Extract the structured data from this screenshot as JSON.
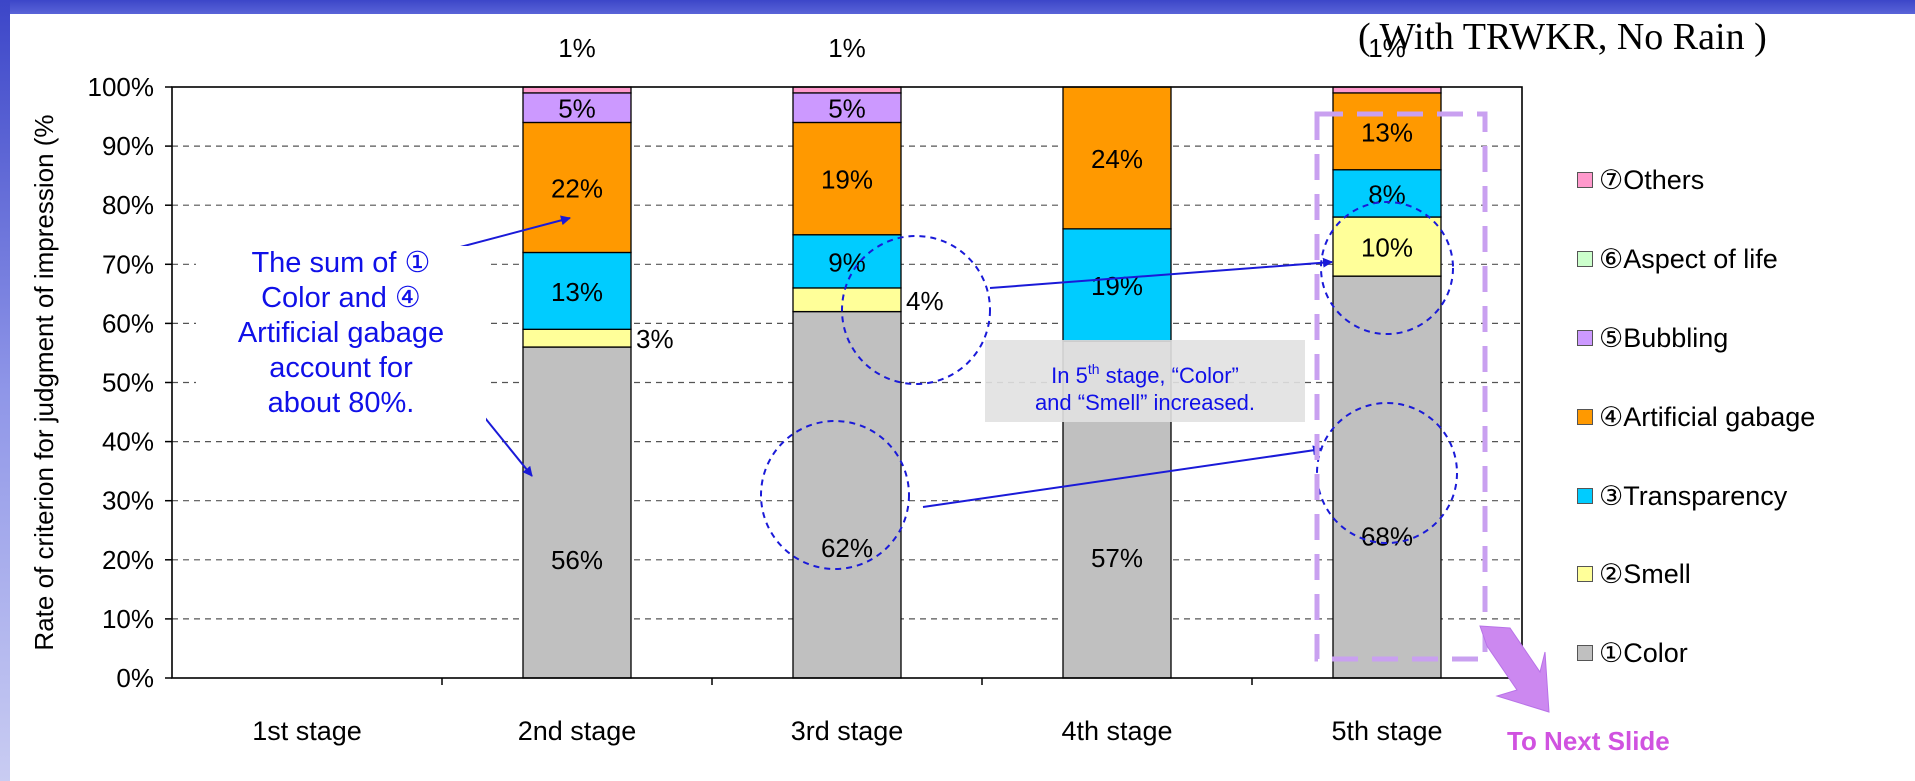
{
  "subtitle": "( With TRWKR, No Rain )",
  "chart_data": {
    "type": "bar",
    "stacked": true,
    "title": "",
    "xlabel": "",
    "ylabel": "Rate of criterion for judgment of impression (%",
    "ylim": [
      0,
      100
    ],
    "y_ticks": [
      "0%",
      "10%",
      "20%",
      "30%",
      "40%",
      "50%",
      "60%",
      "70%",
      "80%",
      "90%",
      "100%"
    ],
    "grid": true,
    "legend_position": "right",
    "categories": [
      "1st stage",
      "2nd stage",
      "3rd stage",
      "4th stage",
      "5th stage"
    ],
    "series": [
      {
        "name": "①Color",
        "color": "#c0c0c0",
        "values": [
          0,
          56,
          62,
          57,
          68
        ],
        "labels": [
          "",
          "56%",
          "62%",
          "57%",
          "68%"
        ]
      },
      {
        "name": "②Smell",
        "color": "#ffff99",
        "values": [
          0,
          3,
          4,
          0,
          10
        ],
        "labels": [
          "",
          "3%",
          "4%",
          "",
          "10%"
        ]
      },
      {
        "name": "③Transparency",
        "color": "#00ccff",
        "values": [
          0,
          13,
          9,
          19,
          8
        ],
        "labels": [
          "",
          "13%",
          "9%",
          "19%",
          "8%"
        ]
      },
      {
        "name": "④Artificial gabage",
        "color": "#ff9900",
        "values": [
          0,
          22,
          19,
          24,
          13
        ],
        "labels": [
          "",
          "22%",
          "19%",
          "24%",
          "13%"
        ]
      },
      {
        "name": "⑤Bubbling",
        "color": "#cc99ff",
        "values": [
          0,
          5,
          5,
          0,
          0
        ],
        "labels": [
          "",
          "5%",
          "5%",
          "",
          ""
        ]
      },
      {
        "name": "⑥Aspect of life",
        "color": "#ccffcc",
        "values": [
          0,
          0,
          0,
          0,
          0
        ],
        "labels": [
          "",
          "",
          "",
          "",
          ""
        ]
      },
      {
        "name": "⑦Others",
        "color": "#ff99cc",
        "values": [
          0,
          1,
          1,
          0,
          1
        ],
        "labels": [
          "",
          "1%",
          "1%",
          "",
          "1%"
        ]
      }
    ],
    "annotations": {
      "main_callout": [
        "The sum of ①",
        "Color and ④",
        "Artificial gabage",
        "account for",
        "about 80%."
      ],
      "stage5_callout": {
        "line1_pre": "In 5",
        "line1_sup": "th",
        "line1_post": " stage, “Color”",
        "line2": "and “Smell” increased."
      },
      "next_slide": "To Next Slide"
    }
  }
}
